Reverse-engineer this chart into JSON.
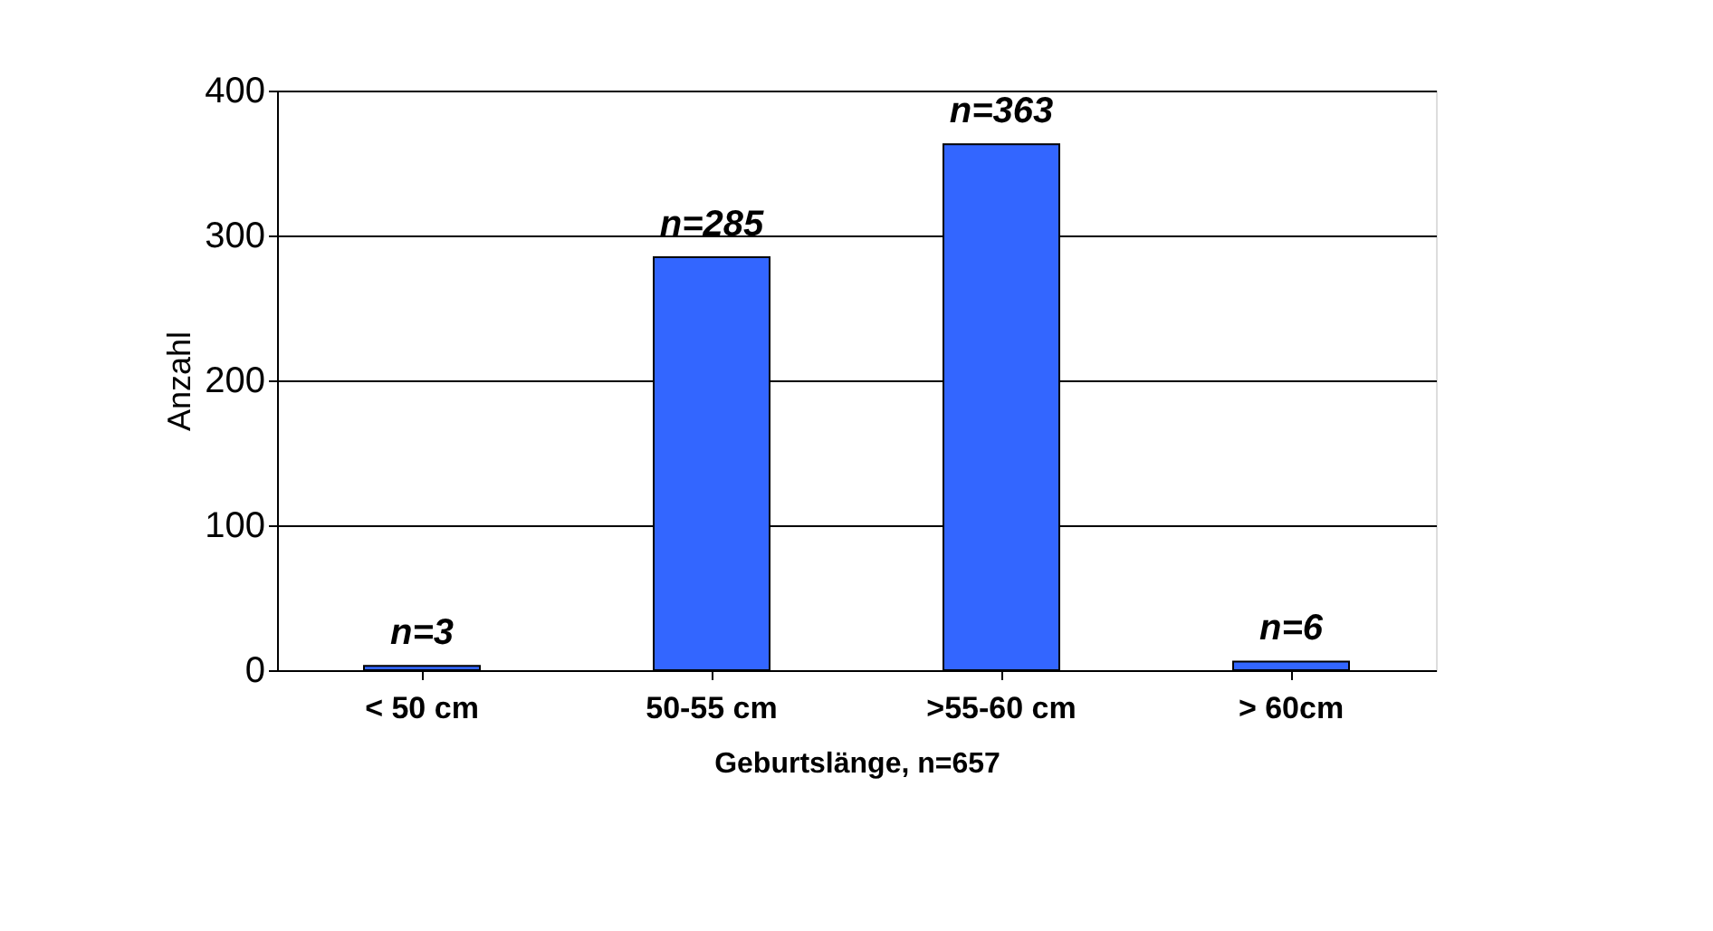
{
  "chart_data": {
    "type": "bar",
    "xlabel": "Geburtslänge, n=657",
    "ylabel": "Anzahl",
    "categories": [
      "< 50 cm",
      "50-55 cm",
      ">55-60 cm",
      "> 60cm"
    ],
    "values": [
      3,
      285,
      363,
      6
    ],
    "value_labels": [
      "n=3",
      "n=285",
      "n=363",
      "n=6"
    ],
    "color": "#3366ff",
    "ylim": [
      0,
      400
    ],
    "yticks": [
      0,
      100,
      200,
      300,
      400
    ],
    "grid": "y"
  }
}
